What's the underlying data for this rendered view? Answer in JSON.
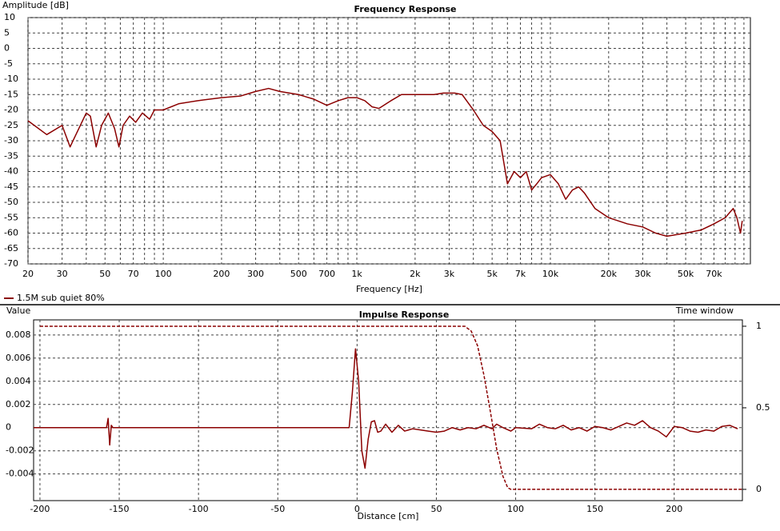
{
  "chart_data": [
    {
      "type": "line",
      "title": "Frequency Response",
      "ylabel": "Amplitude [dB]",
      "xlabel": "Frequency [Hz]",
      "xscale": "log",
      "xlim": [
        20,
        108000
      ],
      "ylim": [
        -70,
        10
      ],
      "xticks": [
        20,
        30,
        50,
        70,
        100,
        200,
        300,
        500,
        700,
        {
          "value": 1000,
          "label": "1k"
        },
        {
          "value": 2000,
          "label": "2k"
        },
        {
          "value": 3000,
          "label": "3k"
        },
        {
          "value": 5000,
          "label": "5k"
        },
        {
          "value": 7000,
          "label": "7k"
        },
        {
          "value": 10000,
          "label": "10k"
        },
        {
          "value": 20000,
          "label": "20k"
        },
        {
          "value": 30000,
          "label": "30k"
        },
        {
          "value": 50000,
          "label": "50k"
        },
        {
          "value": 70000,
          "label": "70k"
        }
      ],
      "xminor": [
        40,
        60,
        80,
        90,
        400,
        600,
        800,
        900,
        4000,
        6000,
        8000,
        9000,
        40000,
        60000,
        80000,
        90000,
        100000
      ],
      "yticks": [
        10,
        5,
        0,
        -5,
        -10,
        -15,
        -20,
        -25,
        -30,
        -35,
        -40,
        -45,
        -50,
        -55,
        -60,
        -65,
        -70
      ],
      "grid": true,
      "legend": "bottom-left",
      "series": [
        {
          "name": "1.5M sub quiet 80%",
          "color": "#8b0000",
          "style": "solid",
          "x": [
            20,
            25,
            30,
            33,
            36,
            40,
            42,
            45,
            48,
            52,
            56,
            59,
            62,
            67,
            72,
            78,
            85,
            90,
            100,
            120,
            150,
            200,
            250,
            300,
            350,
            400,
            500,
            600,
            700,
            800,
            900,
            1000,
            1100,
            1200,
            1300,
            1500,
            1700,
            2000,
            2500,
            2800,
            3200,
            3500,
            4000,
            4500,
            5000,
            5500,
            6000,
            6500,
            7000,
            7500,
            8000,
            8500,
            9000,
            10000,
            11000,
            12000,
            13000,
            14000,
            15000,
            17000,
            20000,
            25000,
            30000,
            35000,
            40000,
            50000,
            60000,
            70000,
            80000,
            88000,
            92000,
            96000,
            98000
          ],
          "values": [
            -23.5,
            -28,
            -25,
            -32,
            -27,
            -21,
            -22,
            -32,
            -25,
            -21,
            -26,
            -32,
            -25,
            -22,
            -24,
            -21,
            -23,
            -20,
            -20,
            -18,
            -17,
            -16,
            -15.5,
            -14,
            -13,
            -14,
            -15,
            -16.5,
            -18.5,
            -17,
            -16,
            -16,
            -17,
            -19,
            -19.5,
            -17,
            -15,
            -15,
            -15,
            -14.5,
            -14.5,
            -15,
            -20,
            -25,
            -27,
            -30,
            -44,
            -40,
            -42,
            -40,
            -46,
            -44,
            -42,
            -41,
            -44,
            -49,
            -46,
            -45,
            -47,
            -52,
            -55,
            -57,
            -58,
            -60,
            -61,
            -60,
            -59,
            -57,
            -55,
            -52,
            -55,
            -60,
            -56
          ]
        }
      ]
    },
    {
      "type": "line",
      "title": "Impulse Response",
      "ylabel": "Value",
      "y2label": "Time window",
      "xlabel": "Distance [cm]",
      "xscale": "linear",
      "xlim": [
        -204,
        243
      ],
      "ylim": [
        -0.0063,
        0.0093
      ],
      "y2lim": [
        -0.069,
        1.039
      ],
      "xticks": [
        -200,
        -150,
        -100,
        -50,
        0,
        50,
        100,
        150,
        200
      ],
      "yticks": [
        0.008,
        0.006,
        0.004,
        0.002,
        0,
        -0.002,
        -0.004
      ],
      "y2ticks": [
        1,
        0.5,
        0
      ],
      "grid": true,
      "series": [
        {
          "color": "#8b0000",
          "style": "solid",
          "x": [
            -204,
            -158,
            -157,
            -156,
            -155,
            -154,
            -5,
            -3,
            -1,
            1,
            3,
            5,
            7,
            9,
            11,
            13,
            15,
            18,
            22,
            26,
            30,
            35,
            40,
            45,
            50,
            55,
            60,
            65,
            70,
            75,
            80,
            85,
            88,
            92,
            97,
            100,
            110,
            115,
            120,
            125,
            130,
            135,
            140,
            145,
            150,
            155,
            160,
            165,
            170,
            175,
            180,
            185,
            190,
            195,
            200,
            205,
            210,
            215,
            220,
            225,
            230,
            235,
            240
          ],
          "values": [
            0,
            0,
            0.0008,
            -0.0015,
            0.0002,
            0,
            0,
            0.003,
            0.0068,
            0.004,
            -0.002,
            -0.0035,
            -0.001,
            0.0005,
            0.0006,
            -0.0004,
            -0.0003,
            0.0003,
            -0.0004,
            0.0002,
            -0.0003,
            -0.0001,
            -0.0002,
            -0.0003,
            -0.0004,
            -0.0003,
            0,
            -0.0002,
            0,
            -0.0001,
            0.0002,
            -0.0001,
            0.0003,
            0,
            -0.0003,
            0,
            -0.0001,
            0.0003,
            0,
            -0.0001,
            0.0002,
            -0.0002,
            0,
            -0.0003,
            0.0001,
            0,
            -0.0002,
            0.0001,
            0.0004,
            0.0002,
            0.0006,
            0,
            -0.0003,
            -0.0008,
            0.0001,
            0,
            -0.0003,
            -0.0004,
            -0.0002,
            -0.0003,
            0.0001,
            0.0002,
            -0.0001
          ]
        },
        {
          "color": "#8b0000",
          "style": "dashed",
          "axis": "y2",
          "x": [
            -200,
            68,
            72,
            76,
            80,
            84,
            88,
            92,
            95,
            97,
            243
          ],
          "values": [
            1,
            1,
            0.97,
            0.88,
            0.7,
            0.48,
            0.25,
            0.08,
            0.01,
            0,
            0
          ]
        }
      ]
    }
  ]
}
